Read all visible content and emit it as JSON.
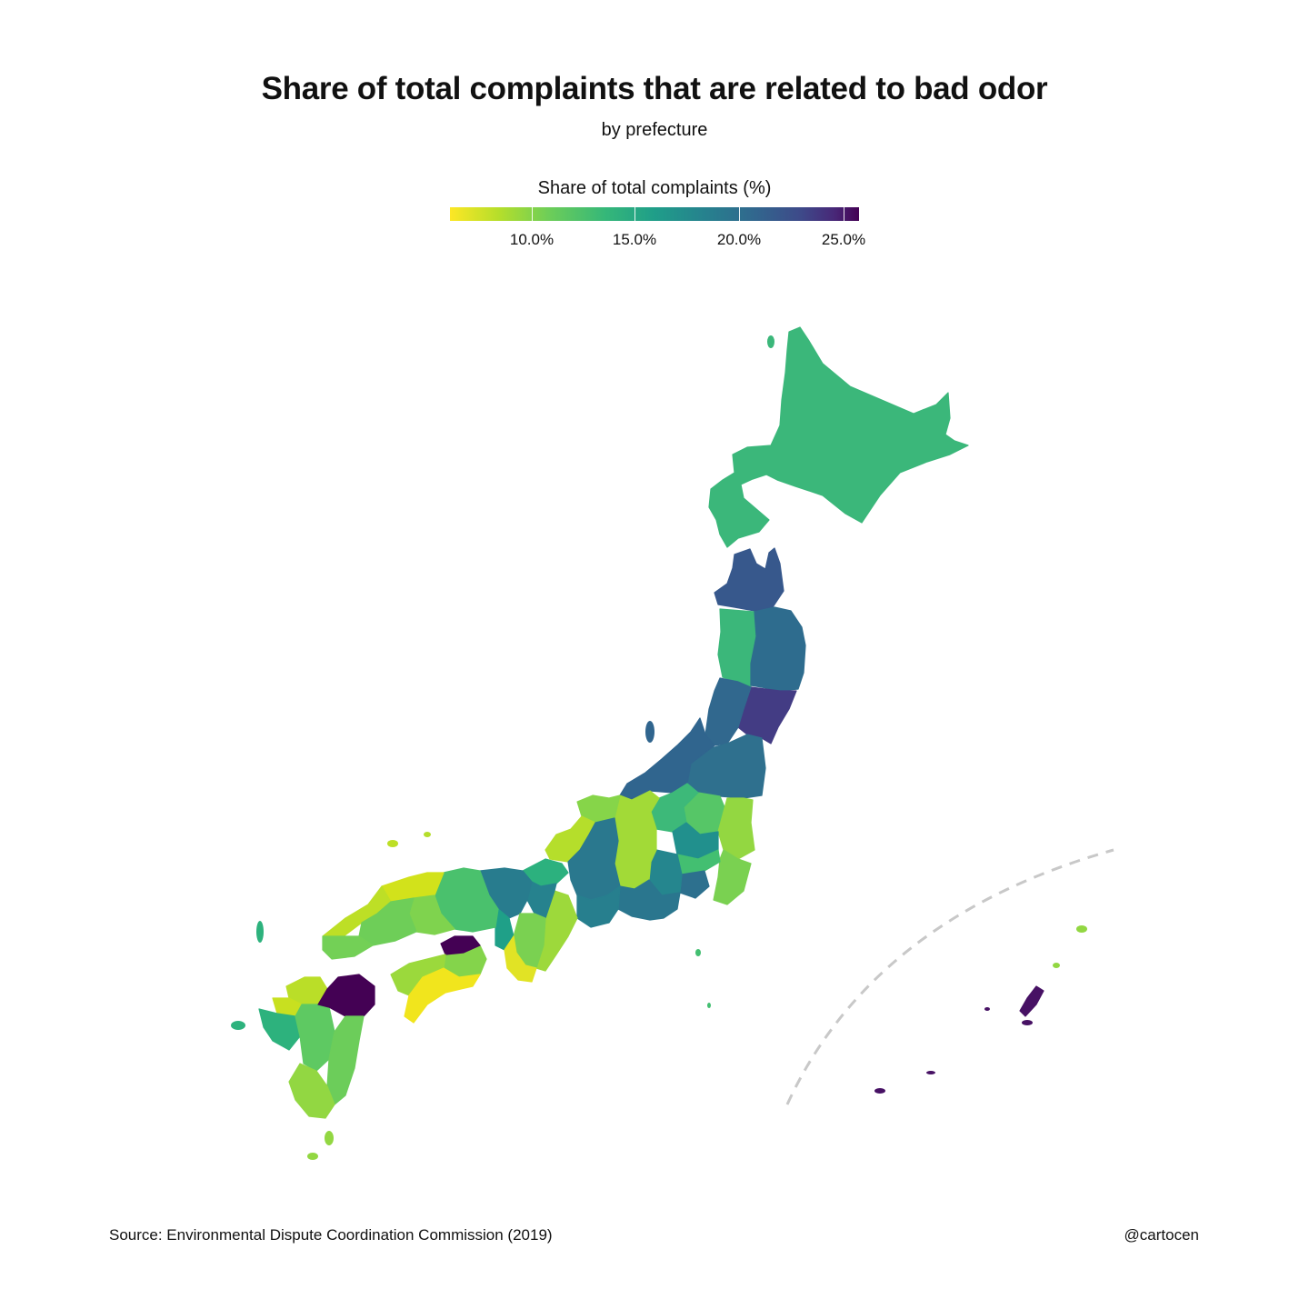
{
  "title": "Share of total complaints that are related to bad odor",
  "subtitle": "by prefecture",
  "legend": {
    "title": "Share of total complaints (%)",
    "ticks": [
      "10.0%",
      "15.0%",
      "20.0%",
      "25.0%"
    ],
    "range": [
      6,
      25.6
    ],
    "colors": [
      "#fde725",
      "#440154"
    ]
  },
  "source": "Source: Environmental Dispute Coordination Commission (2019)",
  "credit": "@cartocen",
  "regions": [
    {
      "name": "Hokkaido",
      "value": 14.5,
      "color": "#3bb77a"
    },
    {
      "name": "Aomori",
      "value": 20.5,
      "color": "#37588c"
    },
    {
      "name": "Akita",
      "value": 14.5,
      "color": "#3bb77a"
    },
    {
      "name": "Iwate",
      "value": 19.5,
      "color": "#2e6c8e"
    },
    {
      "name": "Miyagi",
      "value": 23.0,
      "color": "#433c84"
    },
    {
      "name": "Yamagata",
      "value": 19.0,
      "color": "#31688e"
    },
    {
      "name": "Fukushima",
      "value": 18.5,
      "color": "#2f708e"
    },
    {
      "name": "Niigata",
      "value": 19.5,
      "color": "#30658e"
    },
    {
      "name": "Tochigi",
      "value": 13.0,
      "color": "#56c667"
    },
    {
      "name": "Ibaraki",
      "value": 11.0,
      "color": "#93d741"
    },
    {
      "name": "Gunma",
      "value": 14.5,
      "color": "#3db979"
    },
    {
      "name": "Saitama",
      "value": 17.5,
      "color": "#21908d"
    },
    {
      "name": "Chiba",
      "value": 12.0,
      "color": "#7ad151"
    },
    {
      "name": "Tokyo",
      "value": 14.0,
      "color": "#43bf71"
    },
    {
      "name": "Kanagawa",
      "value": 19.0,
      "color": "#2d708e"
    },
    {
      "name": "Yamanashi",
      "value": 17.5,
      "color": "#25868e"
    },
    {
      "name": "Nagano",
      "value": 11.0,
      "color": "#a2da37"
    },
    {
      "name": "Toyama",
      "value": 12.0,
      "color": "#86d549"
    },
    {
      "name": "Ishikawa",
      "value": 10.0,
      "color": "#b5de2b"
    },
    {
      "name": "Fukui",
      "value": 15.5,
      "color": "#2cb17e"
    },
    {
      "name": "Gifu",
      "value": 18.0,
      "color": "#2a788e"
    },
    {
      "name": "Shizuoka",
      "value": 18.5,
      "color": "#2a768e"
    },
    {
      "name": "Aichi",
      "value": 18.0,
      "color": "#277f8e"
    },
    {
      "name": "Mie",
      "value": 11.5,
      "color": "#9dd93b"
    },
    {
      "name": "Shiga",
      "value": 18.5,
      "color": "#26828e"
    },
    {
      "name": "Kyoto",
      "value": 18.0,
      "color": "#287c8e"
    },
    {
      "name": "Osaka",
      "value": 15.5,
      "color": "#1fa088"
    },
    {
      "name": "Hyogo",
      "value": 13.5,
      "color": "#4ac16d"
    },
    {
      "name": "Nara",
      "value": 12.5,
      "color": "#7ad151"
    },
    {
      "name": "Wakayama",
      "value": 7.5,
      "color": "#e1e325"
    },
    {
      "name": "Tottori",
      "value": 8.5,
      "color": "#d2e21b"
    },
    {
      "name": "Shimane",
      "value": 10.5,
      "color": "#bddf26"
    },
    {
      "name": "Okayama",
      "value": 12.0,
      "color": "#7fd34e"
    },
    {
      "name": "Hiroshima",
      "value": 12.5,
      "color": "#6ece58"
    },
    {
      "name": "Yamaguchi",
      "value": 12.5,
      "color": "#73d056"
    },
    {
      "name": "Tokushima",
      "value": 12.0,
      "color": "#84d44b"
    },
    {
      "name": "Kagawa",
      "value": 25.5,
      "color": "#440154"
    },
    {
      "name": "Ehime",
      "value": 11.5,
      "color": "#9bd93c"
    },
    {
      "name": "Kochi",
      "value": 7.0,
      "color": "#f1e51d"
    },
    {
      "name": "Fukuoka",
      "value": 10.0,
      "color": "#bade28"
    },
    {
      "name": "Saga",
      "value": 9.0,
      "color": "#c8e020"
    },
    {
      "name": "Nagasaki",
      "value": 15.5,
      "color": "#2db27d"
    },
    {
      "name": "Kumamoto",
      "value": 13.0,
      "color": "#5ec962"
    },
    {
      "name": "Oita",
      "value": 25.5,
      "color": "#440154"
    },
    {
      "name": "Miyazaki",
      "value": 12.5,
      "color": "#6ccd5a"
    },
    {
      "name": "Kagoshima",
      "value": 11.5,
      "color": "#92d742"
    },
    {
      "name": "Okinawa",
      "value": 25.0,
      "color": "#471164"
    }
  ]
}
